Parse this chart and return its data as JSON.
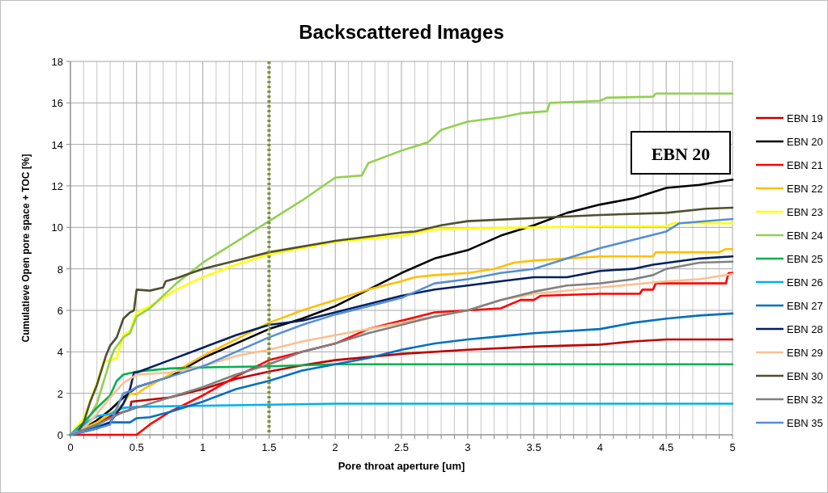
{
  "chart_data": {
    "type": "line",
    "title": "Backscattered Images",
    "xlabel": "Pore throat aperture [um]",
    "ylabel": "Cumulatieve Open pore space + TOC [%]",
    "xlim": [
      0,
      5
    ],
    "ylim": [
      0,
      18
    ],
    "xticks": [
      0,
      {
        "value": 0.1,
        "label": null
      },
      {
        "value": 0.2,
        "label": null
      },
      {
        "value": 0.3,
        "label": null
      },
      {
        "value": 0.4,
        "label": null
      },
      0.5,
      {
        "value": 0.6,
        "label": null
      },
      {
        "value": 0.7,
        "label": null
      },
      {
        "value": 0.8,
        "label": null
      },
      {
        "value": 0.9,
        "label": null
      },
      1,
      {
        "value": 1.1,
        "label": null
      },
      {
        "value": 1.2,
        "label": null
      },
      {
        "value": 1.3,
        "label": null
      },
      {
        "value": 1.4,
        "label": null
      },
      1.5,
      {
        "value": 1.6,
        "label": null
      },
      {
        "value": 1.7,
        "label": null
      },
      {
        "value": 1.8,
        "label": null
      },
      {
        "value": 1.9,
        "label": null
      },
      2,
      {
        "value": 2.1,
        "label": null
      },
      {
        "value": 2.2,
        "label": null
      },
      {
        "value": 2.3,
        "label": null
      },
      {
        "value": 2.4,
        "label": null
      },
      2.5,
      {
        "value": 2.6,
        "label": null
      },
      {
        "value": 2.7,
        "label": null
      },
      {
        "value": 2.8,
        "label": null
      },
      {
        "value": 2.9,
        "label": null
      },
      3,
      {
        "value": 3.1,
        "label": null
      },
      {
        "value": 3.2,
        "label": null
      },
      {
        "value": 3.3,
        "label": null
      },
      {
        "value": 3.4,
        "label": null
      },
      3.5,
      {
        "value": 3.6,
        "label": null
      },
      {
        "value": 3.7,
        "label": null
      },
      {
        "value": 3.8,
        "label": null
      },
      {
        "value": 3.9,
        "label": null
      },
      4,
      {
        "value": 4.1,
        "label": null
      },
      {
        "value": 4.2,
        "label": null
      },
      {
        "value": 4.3,
        "label": null
      },
      {
        "value": 4.4,
        "label": null
      },
      4.5,
      {
        "value": 4.6,
        "label": null
      },
      {
        "value": 4.7,
        "label": null
      },
      {
        "value": 4.8,
        "label": null
      },
      {
        "value": 4.9,
        "label": null
      },
      5
    ],
    "yticks": [
      0,
      2,
      4,
      6,
      8,
      10,
      12,
      14,
      16,
      18
    ],
    "grid": true,
    "legend": "right",
    "line_style": "solid",
    "ref_lines": [
      {
        "axis": "x",
        "value": 1.5,
        "color": "#77933c",
        "line_style": "dotted"
      }
    ],
    "annotations": [
      "EBN 20"
    ],
    "series": [
      {
        "name": "EBN 19",
        "color": "#c00000",
        "x": [
          0,
          0.2,
          0.3,
          0.4,
          0.45,
          0.46,
          0.75,
          1,
          1.25,
          1.5,
          1.75,
          2,
          2.5,
          3,
          3.5,
          4,
          4.25,
          4.5,
          5
        ],
        "values": [
          0,
          0.5,
          0.9,
          1.1,
          1.2,
          1.6,
          1.8,
          2.2,
          2.7,
          3.05,
          3.35,
          3.6,
          3.9,
          4.1,
          4.25,
          4.35,
          4.5,
          4.6,
          4.6
        ]
      },
      {
        "name": "EBN 20",
        "color": "#000000",
        "x": [
          0,
          0.1,
          0.2,
          0.3,
          0.4,
          0.5,
          0.75,
          1,
          1.25,
          1.5,
          1.75,
          2,
          2.25,
          2.5,
          2.75,
          3,
          3.25,
          3.5,
          3.75,
          4,
          4.25,
          4.5,
          4.75,
          5
        ],
        "values": [
          0,
          0.3,
          0.7,
          1.2,
          1.8,
          2.3,
          2.8,
          3.7,
          4.4,
          5.1,
          5.6,
          6.2,
          7,
          7.8,
          8.5,
          8.9,
          9.6,
          10.1,
          10.7,
          11.1,
          11.4,
          11.9,
          12.05,
          12.3
        ]
      },
      {
        "name": "EBN 21",
        "color": "#ff0000",
        "x": [
          0,
          0.5,
          0.6,
          0.75,
          1,
          1.25,
          1.5,
          1.75,
          2,
          2.25,
          2.5,
          2.75,
          3,
          3.25,
          3.4,
          3.5,
          3.55,
          4,
          4.3,
          4.32,
          4.4,
          4.42,
          4.95,
          4.97,
          5
        ],
        "values": [
          0,
          0,
          0.5,
          1.1,
          1.9,
          2.8,
          3.6,
          4,
          4.4,
          5.1,
          5.5,
          5.9,
          6,
          6.1,
          6.5,
          6.5,
          6.7,
          6.8,
          6.8,
          7,
          7,
          7.3,
          7.3,
          7.8,
          7.8
        ]
      },
      {
        "name": "EBN 22",
        "color": "#ffc000",
        "x": [
          0,
          0.2,
          0.3,
          0.4,
          0.45,
          0.5,
          0.55,
          0.75,
          1,
          1.25,
          1.5,
          1.75,
          2,
          2.25,
          2.5,
          2.6,
          2.75,
          3,
          3.2,
          3.35,
          3.5,
          4,
          4.4,
          4.42,
          4.9,
          4.95,
          5
        ],
        "values": [
          0,
          0.6,
          1,
          1.5,
          2,
          1.95,
          2.2,
          2.9,
          3.8,
          4.6,
          5.4,
          6,
          6.5,
          7,
          7.4,
          7.6,
          7.7,
          7.8,
          8,
          8.3,
          8.4,
          8.6,
          8.6,
          8.8,
          8.8,
          8.95,
          8.95
        ]
      },
      {
        "name": "EBN 23",
        "color": "#ffff00",
        "x": [
          0,
          0.1,
          0.2,
          0.25,
          0.3,
          0.35,
          0.4,
          0.45,
          0.5,
          0.6,
          0.8,
          1,
          1.25,
          1.5,
          2,
          2.5,
          2.75,
          3,
          4,
          4.5,
          4.55,
          5
        ],
        "values": [
          0,
          0.8,
          2.5,
          3.5,
          3.6,
          3.7,
          4.8,
          5,
          5.9,
          6.2,
          7,
          7.6,
          8.2,
          8.7,
          9.3,
          9.6,
          9.9,
          9.95,
          10.05,
          10.05,
          10.2,
          10.2
        ]
      },
      {
        "name": "EBN 24",
        "color": "#92d050",
        "x": [
          0,
          0.1,
          0.2,
          0.3,
          0.33,
          0.4,
          0.45,
          0.5,
          0.6,
          0.8,
          1,
          1.25,
          1.5,
          1.75,
          2,
          2.2,
          2.25,
          2.5,
          2.7,
          2.8,
          3,
          3.25,
          3.4,
          3.6,
          3.62,
          4,
          4.05,
          4.4,
          4.42,
          5
        ],
        "values": [
          0,
          0.4,
          1.5,
          3.6,
          4.1,
          4.7,
          4.9,
          5.7,
          6.1,
          7.3,
          8.3,
          9.3,
          10.3,
          11.3,
          12.4,
          12.5,
          13.1,
          13.7,
          14.1,
          14.7,
          15.1,
          15.3,
          15.5,
          15.6,
          16,
          16.1,
          16.25,
          16.3,
          16.45,
          16.45
        ]
      },
      {
        "name": "EBN 25",
        "color": "#00b050",
        "x": [
          0,
          0.1,
          0.2,
          0.3,
          0.35,
          0.4,
          0.5,
          0.75,
          1,
          1.5,
          2,
          5
        ],
        "values": [
          0,
          0.6,
          1.3,
          1.9,
          2.6,
          2.9,
          3.05,
          3.2,
          3.25,
          3.3,
          3.4,
          3.4
        ]
      },
      {
        "name": "EBN 26",
        "color": "#00b0f0",
        "x": [
          0,
          0.1,
          0.2,
          0.3,
          0.4,
          0.5,
          1,
          1.5,
          2,
          5
        ],
        "values": [
          0,
          0.5,
          0.9,
          1,
          1.3,
          1.35,
          1.4,
          1.45,
          1.5,
          1.5
        ]
      },
      {
        "name": "EBN 27",
        "color": "#0070c0",
        "x": [
          0,
          0.2,
          0.3,
          0.45,
          0.5,
          0.6,
          0.75,
          1,
          1.25,
          1.5,
          1.75,
          2,
          2.25,
          2.5,
          2.75,
          3,
          3.25,
          3.5,
          4,
          4.25,
          4.5,
          4.75,
          5
        ],
        "values": [
          0,
          0.4,
          0.6,
          0.6,
          0.8,
          0.85,
          1.1,
          1.6,
          2.2,
          2.6,
          3.1,
          3.4,
          3.7,
          4.1,
          4.4,
          4.6,
          4.75,
          4.9,
          5.1,
          5.4,
          5.6,
          5.75,
          5.85
        ]
      },
      {
        "name": "EBN 28",
        "color": "#002060",
        "x": [
          0,
          0.2,
          0.3,
          0.4,
          0.45,
          0.48,
          0.5,
          0.75,
          1,
          1.25,
          1.5,
          1.75,
          2,
          2.25,
          2.5,
          2.75,
          3,
          3.25,
          3.5,
          3.75,
          4,
          4.25,
          4.4,
          4.75,
          5
        ],
        "values": [
          0,
          0.3,
          0.6,
          1.5,
          2.2,
          3,
          3,
          3.6,
          4.2,
          4.8,
          5.3,
          5.5,
          5.9,
          6.3,
          6.7,
          7,
          7.2,
          7.4,
          7.6,
          7.6,
          7.9,
          8,
          8.2,
          8.5,
          8.6
        ]
      },
      {
        "name": "EBN 29",
        "color": "#fac090",
        "x": [
          0,
          0.1,
          0.2,
          0.3,
          0.4,
          0.5,
          0.75,
          1,
          1.25,
          1.5,
          1.75,
          2,
          2.25,
          2.5,
          2.75,
          3,
          3.25,
          3.5,
          4,
          4.5,
          4.75,
          5
        ],
        "values": [
          0,
          0.3,
          1,
          1.8,
          2.5,
          2.9,
          3,
          3.3,
          3.8,
          4.1,
          4.5,
          4.8,
          5.1,
          5.4,
          5.7,
          6,
          6.5,
          6.8,
          7.1,
          7.4,
          7.5,
          7.75
        ]
      },
      {
        "name": "EBN 30",
        "color": "#4f4f2f",
        "x": [
          0,
          0.05,
          0.1,
          0.15,
          0.2,
          0.27,
          0.3,
          0.35,
          0.4,
          0.45,
          0.48,
          0.5,
          0.6,
          0.7,
          0.72,
          0.8,
          1,
          1.25,
          1.5,
          2,
          2.5,
          2.6,
          2.8,
          3,
          3.5,
          4,
          4.5,
          4.8,
          5
        ],
        "values": [
          0,
          0.05,
          0.6,
          1.6,
          2.4,
          3.85,
          4.3,
          4.7,
          5.6,
          5.9,
          6,
          7,
          6.95,
          7.1,
          7.4,
          7.55,
          8,
          8.4,
          8.8,
          9.35,
          9.75,
          9.8,
          10.1,
          10.3,
          10.45,
          10.6,
          10.7,
          10.9,
          10.95
        ]
      },
      {
        "name": "EBN 32",
        "color": "#808080",
        "x": [
          0,
          0.2,
          0.3,
          0.4,
          0.5,
          0.75,
          1,
          1.25,
          1.5,
          1.75,
          2,
          2.25,
          2.5,
          2.75,
          3,
          3.25,
          3.5,
          3.75,
          4,
          4.25,
          4.4,
          4.5,
          4.75,
          5
        ],
        "values": [
          0,
          0.5,
          0.8,
          1.1,
          1.3,
          1.8,
          2.3,
          2.9,
          3.4,
          4,
          4.4,
          4.9,
          5.3,
          5.7,
          6,
          6.5,
          6.9,
          7.2,
          7.3,
          7.5,
          7.7,
          8,
          8.3,
          8.35
        ]
      },
      {
        "name": "EBN 35",
        "color": "#558ed5",
        "x": [
          0,
          0.2,
          0.3,
          0.35,
          0.4,
          0.45,
          0.5,
          0.75,
          1,
          1.25,
          1.5,
          1.75,
          2,
          2.25,
          2.5,
          2.75,
          3,
          3.25,
          3.5,
          3.75,
          4,
          4.25,
          4.5,
          4.6,
          5
        ],
        "values": [
          0,
          0.3,
          0.5,
          1.3,
          2,
          2.1,
          2.3,
          2.8,
          3.3,
          4,
          4.7,
          5.3,
          5.8,
          6.2,
          6.6,
          7.3,
          7.5,
          7.8,
          8,
          8.5,
          9,
          9.4,
          9.8,
          10.2,
          10.4
        ]
      }
    ]
  }
}
